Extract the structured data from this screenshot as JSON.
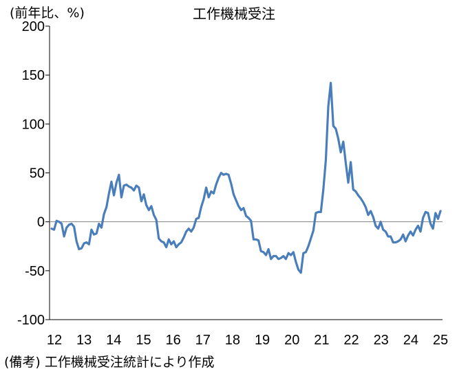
{
  "chart_data": {
    "type": "line",
    "title": "工作機械受注",
    "unit_label": "(前年比、%)",
    "source_note": "(備考) 工作機械受注統計により作成",
    "ylim": [
      -100,
      200
    ],
    "y_ticks": [
      "200",
      "150",
      "100",
      "50",
      "0",
      "-50",
      "-100"
    ],
    "y_tick_values": [
      200,
      150,
      100,
      50,
      0,
      -50,
      -100
    ],
    "x_ticks": [
      "12",
      "13",
      "14",
      "15",
      "16",
      "17",
      "18",
      "19",
      "20",
      "21",
      "22",
      "23",
      "24",
      "25"
    ],
    "zero_line": true,
    "grid": false,
    "line_color": "#4a7ebb",
    "series": [
      {
        "values": [
          -7,
          -8,
          1,
          0,
          -2,
          -15,
          -6,
          -3,
          -2,
          -5,
          -20,
          -28,
          -27,
          -22,
          -21,
          -23,
          -8,
          -13,
          -12,
          -2,
          -6,
          8,
          15,
          29,
          41,
          27,
          40,
          48,
          25,
          37,
          38,
          36,
          35,
          32,
          37,
          35,
          21,
          28,
          17,
          12,
          16,
          7,
          2,
          -17,
          -20,
          -21,
          -26,
          -18,
          -23,
          -20,
          -26,
          -23,
          -21,
          -16,
          -10,
          -7,
          -10,
          -6,
          3,
          4,
          15,
          23,
          35,
          25,
          31,
          29,
          38,
          45,
          50,
          48,
          49,
          48,
          39,
          28,
          22,
          16,
          12,
          14,
          6,
          4,
          1,
          -18,
          -18,
          -19,
          -30,
          -31,
          -34,
          -28,
          -38,
          -35,
          -35,
          -38,
          -37,
          -35,
          -38,
          -32,
          -34,
          -31,
          -41,
          -49,
          -52,
          -32,
          -31,
          -25,
          -17,
          -9,
          9,
          10,
          10,
          33,
          63,
          118,
          142,
          98,
          95,
          85,
          71,
          82,
          60,
          40,
          61,
          33,
          31,
          27,
          24,
          20,
          15,
          7,
          11,
          5,
          -4,
          -7,
          0,
          -8,
          -10,
          -15,
          -15,
          -21,
          -21,
          -20,
          -18,
          -13,
          -20,
          -14,
          -10,
          -14,
          -8,
          -4,
          -10,
          4,
          10,
          9,
          -2,
          -7,
          9,
          3,
          11
        ]
      }
    ]
  }
}
